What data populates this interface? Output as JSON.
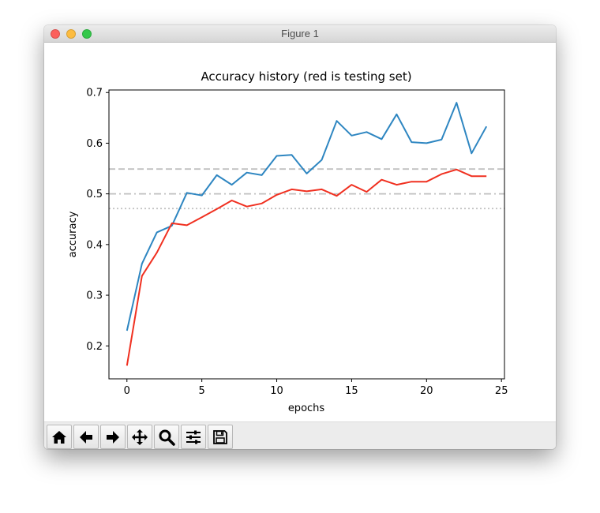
{
  "window": {
    "title": "Figure 1",
    "lights": [
      {
        "name": "close-button",
        "color": "#fc605c"
      },
      {
        "name": "minimize-button",
        "color": "#fdbc40"
      },
      {
        "name": "zoom-button",
        "color": "#34c84a"
      }
    ]
  },
  "toolbar": {
    "buttons": [
      {
        "name": "home-button",
        "icon": "home-icon"
      },
      {
        "name": "back-button",
        "icon": "arrow-left-icon"
      },
      {
        "name": "forward-button",
        "icon": "arrow-right-icon"
      },
      {
        "name": "pan-button",
        "icon": "move-arrows-icon"
      },
      {
        "name": "zoom-rect-button",
        "icon": "magnifier-icon"
      },
      {
        "name": "configure-subplots-button",
        "icon": "sliders-icon"
      },
      {
        "name": "save-button",
        "icon": "floppy-disk-icon"
      }
    ]
  },
  "chart_data": {
    "type": "line",
    "title": "Accuracy history (red is testing set)",
    "xlabel": "epochs",
    "ylabel": "accuracy",
    "xlim": [
      -1.2,
      25.2
    ],
    "ylim": [
      0.135,
      0.705
    ],
    "xticks": [
      0,
      5,
      10,
      15,
      20,
      25
    ],
    "yticks": [
      0.2,
      0.3,
      0.4,
      0.5,
      0.6,
      0.7
    ],
    "grid": false,
    "x": [
      0,
      1,
      2,
      3,
      4,
      5,
      6,
      7,
      8,
      9,
      10,
      11,
      12,
      13,
      14,
      15,
      16,
      17,
      18,
      19,
      20,
      21,
      22,
      23,
      24
    ],
    "series": [
      {
        "color": "#2e86c1",
        "values": [
          0.23,
          0.362,
          0.424,
          0.437,
          0.502,
          0.497,
          0.537,
          0.518,
          0.542,
          0.537,
          0.575,
          0.577,
          0.54,
          0.567,
          0.644,
          0.615,
          0.622,
          0.608,
          0.657,
          0.602,
          0.6,
          0.607,
          0.68,
          0.58,
          0.633
        ]
      },
      {
        "color": "#f03020",
        "values": [
          0.161,
          0.338,
          0.384,
          0.442,
          0.438,
          0.454,
          0.47,
          0.487,
          0.475,
          0.481,
          0.498,
          0.509,
          0.505,
          0.509,
          0.496,
          0.518,
          0.504,
          0.528,
          0.518,
          0.524,
          0.524,
          0.539,
          0.548,
          0.535,
          0.535
        ]
      }
    ],
    "reference_lines": [
      {
        "y": 0.549,
        "style": "dashed",
        "color": "#c0c0c0"
      },
      {
        "y": 0.5,
        "style": "dashdot",
        "color": "#c0c0c0"
      },
      {
        "y": 0.471,
        "style": "dotted",
        "color": "#c0c0c0"
      }
    ]
  }
}
